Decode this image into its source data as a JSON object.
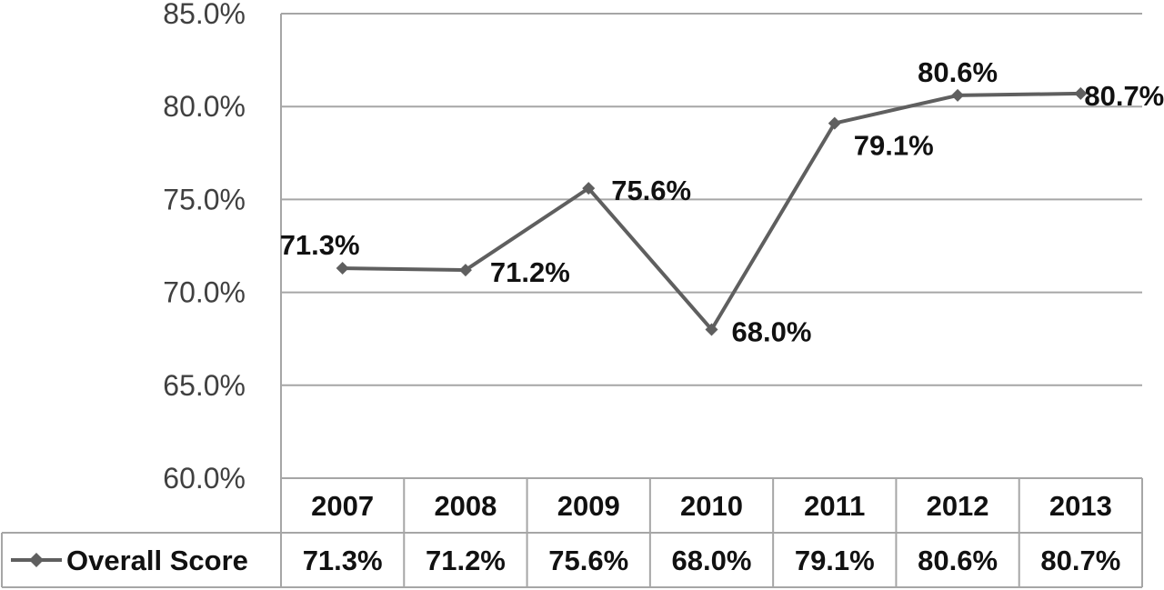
{
  "chart_data": {
    "type": "line",
    "categories": [
      "2007",
      "2008",
      "2009",
      "2010",
      "2011",
      "2012",
      "2013"
    ],
    "series": [
      {
        "name": "Overall Score",
        "values": [
          71.3,
          71.2,
          75.6,
          68.0,
          79.1,
          80.6,
          80.7
        ],
        "labels": [
          "71.3%",
          "71.2%",
          "75.6%",
          "68.0%",
          "79.1%",
          "80.6%",
          "80.7%"
        ],
        "color": "#5f5f5f",
        "marker": "diamond"
      }
    ],
    "yticks": [
      "60.0%",
      "65.0%",
      "70.0%",
      "75.0%",
      "80.0%",
      "85.0%"
    ],
    "ylim": [
      60,
      85
    ],
    "grid": true,
    "legend": "data-table",
    "title": "",
    "xlabel": "",
    "ylabel": ""
  }
}
